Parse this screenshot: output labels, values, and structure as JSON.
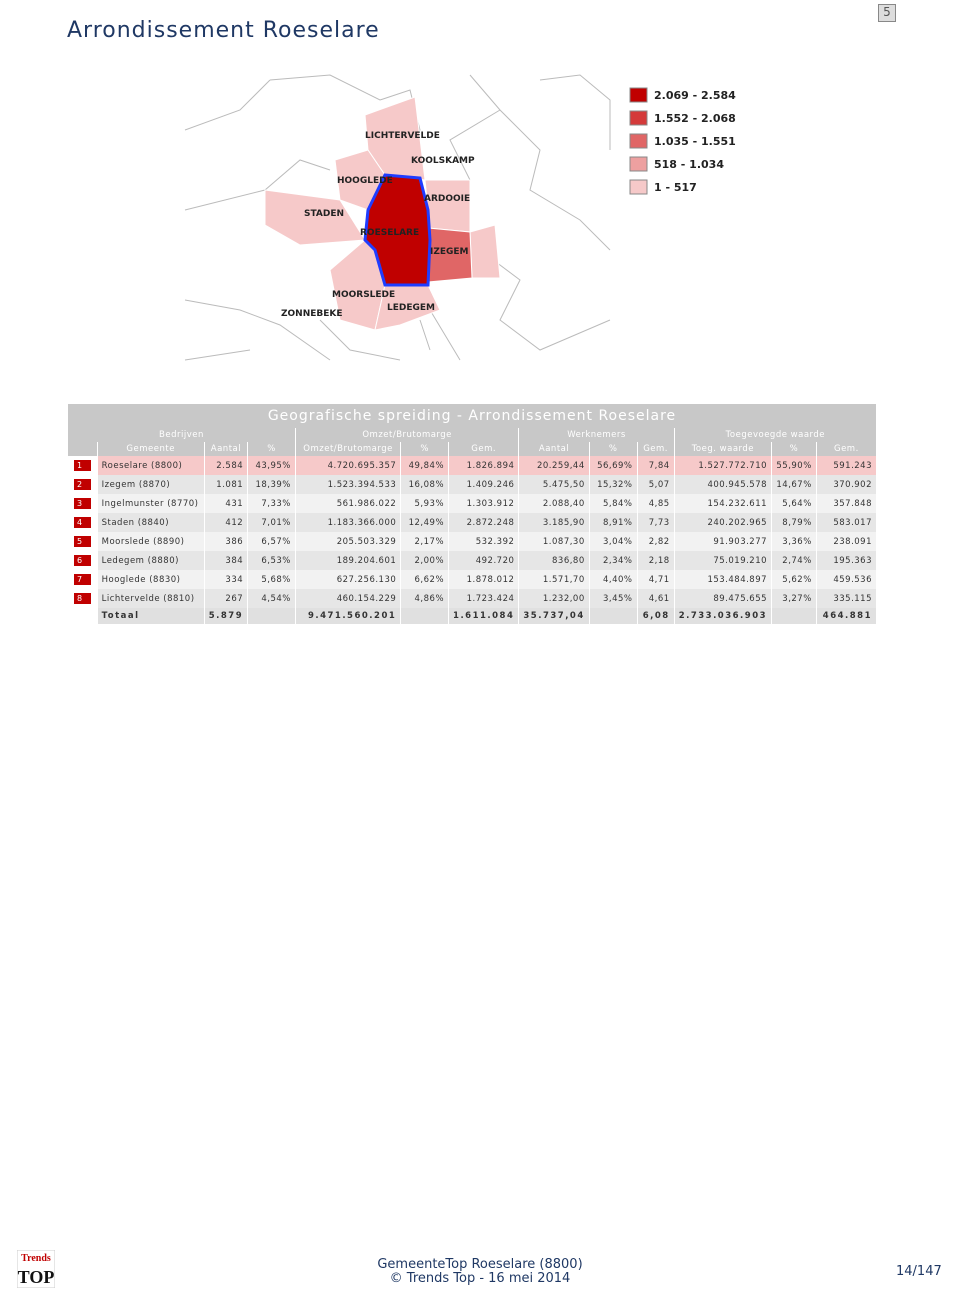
{
  "header": {
    "title": "Arrondissement Roeselare",
    "page_badge": "5"
  },
  "map": {
    "labels": [
      "LICHTERVELDE",
      "KOOLSKAMP",
      "HOOGLEDE",
      "ARDOOIE",
      "STADEN",
      "ROESELARE",
      "IZEGEM",
      "MOORSLEDE",
      "LEDEGEM",
      "ZONNEBEKE"
    ],
    "legend": [
      {
        "label": "2.069 - 2.584",
        "color": "#c00000"
      },
      {
        "label": "1.552 - 2.068",
        "color": "#d43a3a"
      },
      {
        "label": "1.035 - 1.551",
        "color": "#e06666"
      },
      {
        "label": "518 - 1.034",
        "color": "#eda0a0"
      },
      {
        "label": "1 - 517",
        "color": "#f6c9c9"
      }
    ]
  },
  "table": {
    "title": "Geografische spreiding - Arrondissement Roeselare",
    "group_headers": [
      "Bedrijven",
      "Omzet/Brutomarge",
      "Werknemers",
      "Toegevoegde waarde"
    ],
    "columns": [
      "Gemeente",
      "Aantal",
      "%",
      "Omzet/Brutomarge",
      "%",
      "Gem.",
      "Aantal",
      "%",
      "Gem.",
      "Toeg. waarde",
      "%",
      "Gem."
    ],
    "rows": [
      [
        "1",
        "Roeselare (8800)",
        "2.584",
        "43,95%",
        "4.720.695.357",
        "49,84%",
        "1.826.894",
        "20.259,44",
        "56,69%",
        "7,84",
        "1.527.772.710",
        "55,90%",
        "591.243"
      ],
      [
        "2",
        "Izegem (8870)",
        "1.081",
        "18,39%",
        "1.523.394.533",
        "16,08%",
        "1.409.246",
        "5.475,50",
        "15,32%",
        "5,07",
        "400.945.578",
        "14,67%",
        "370.902"
      ],
      [
        "3",
        "Ingelmunster (8770)",
        "431",
        "7,33%",
        "561.986.022",
        "5,93%",
        "1.303.912",
        "2.088,40",
        "5,84%",
        "4,85",
        "154.232.611",
        "5,64%",
        "357.848"
      ],
      [
        "4",
        "Staden (8840)",
        "412",
        "7,01%",
        "1.183.366.000",
        "12,49%",
        "2.872.248",
        "3.185,90",
        "8,91%",
        "7,73",
        "240.202.965",
        "8,79%",
        "583.017"
      ],
      [
        "5",
        "Moorslede (8890)",
        "386",
        "6,57%",
        "205.503.329",
        "2,17%",
        "532.392",
        "1.087,30",
        "3,04%",
        "2,82",
        "91.903.277",
        "3,36%",
        "238.091"
      ],
      [
        "6",
        "Ledegem (8880)",
        "384",
        "6,53%",
        "189.204.601",
        "2,00%",
        "492.720",
        "836,80",
        "2,34%",
        "2,18",
        "75.019.210",
        "2,74%",
        "195.363"
      ],
      [
        "7",
        "Hooglede (8830)",
        "334",
        "5,68%",
        "627.256.130",
        "6,62%",
        "1.878.012",
        "1.571,70",
        "4,40%",
        "4,71",
        "153.484.897",
        "5,62%",
        "459.536"
      ],
      [
        "8",
        "Lichtervelde (8810)",
        "267",
        "4,54%",
        "460.154.229",
        "4,86%",
        "1.723.424",
        "1.232,00",
        "3,45%",
        "4,61",
        "89.475.655",
        "3,27%",
        "335.115"
      ]
    ],
    "total": [
      "Totaal",
      "5.879",
      null,
      "9.471.560.201",
      null,
      "1.611.084",
      "35.737,04",
      null,
      "6,08",
      "2.733.036.903",
      null,
      "464.881"
    ]
  },
  "footer": {
    "logo_top": "Trends",
    "logo_bottom": "TOP",
    "line1": "GemeenteTop Roeselare (8800)",
    "line2": "© Trends Top - 16 mei 2014",
    "page": "14/147"
  }
}
